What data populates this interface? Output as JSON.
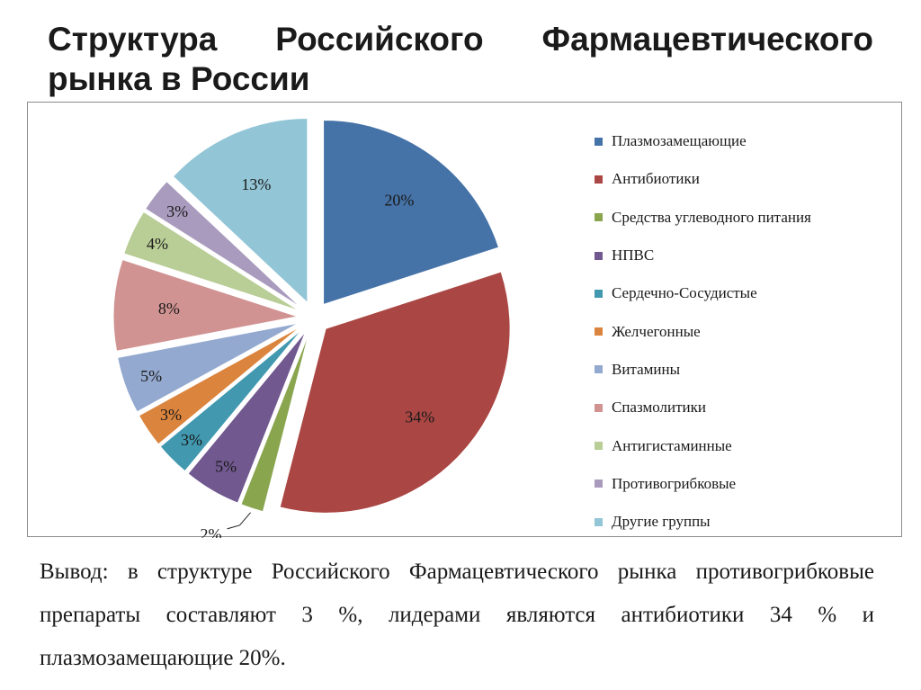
{
  "title_line1": "Структура Российского Фармацевтического",
  "title_line2": "рынка в России",
  "chart_data": {
    "type": "pie",
    "title": "",
    "legend_position": "right",
    "exploded": true,
    "start_angle": "12 o'clock, clockwise",
    "slices": [
      {
        "name": "Плазмозамещающие",
        "value": 20,
        "label": "20%",
        "color": "#4572A7"
      },
      {
        "name": "Антибиотики",
        "value": 34,
        "label": "34%",
        "color": "#AA4643"
      },
      {
        "name": "Средства углеводного питания",
        "value": 2,
        "label": "2%",
        "color": "#89A54E"
      },
      {
        "name": "НПВС",
        "value": 5,
        "label": "5%",
        "color": "#71588F"
      },
      {
        "name": "Сердечно-Сосудистые",
        "value": 3,
        "label": "3%",
        "color": "#4198AF"
      },
      {
        "name": "Желчегонные",
        "value": 3,
        "label": "3%",
        "color": "#DB843D"
      },
      {
        "name": "Витамины",
        "value": 5,
        "label": "5%",
        "color": "#93A9CF"
      },
      {
        "name": "Спазмолитики",
        "value": 8,
        "label": "8%",
        "color": "#D19392"
      },
      {
        "name": "Антигистаминные",
        "value": 4,
        "label": "4%",
        "color": "#B9CD96"
      },
      {
        "name": "Противогрибковые",
        "value": 3,
        "label": "3%",
        "color": "#A99BBD"
      },
      {
        "name": "Другие группы",
        "value": 13,
        "label": "13%",
        "color": "#92C5D6"
      }
    ]
  },
  "conclusion": "Вывод: в структуре Российского Фармацевтического рынка противогрибковые препараты составляют 3 %, лидерами являются антибиотики 34 % и плазмозамещающие 20%."
}
